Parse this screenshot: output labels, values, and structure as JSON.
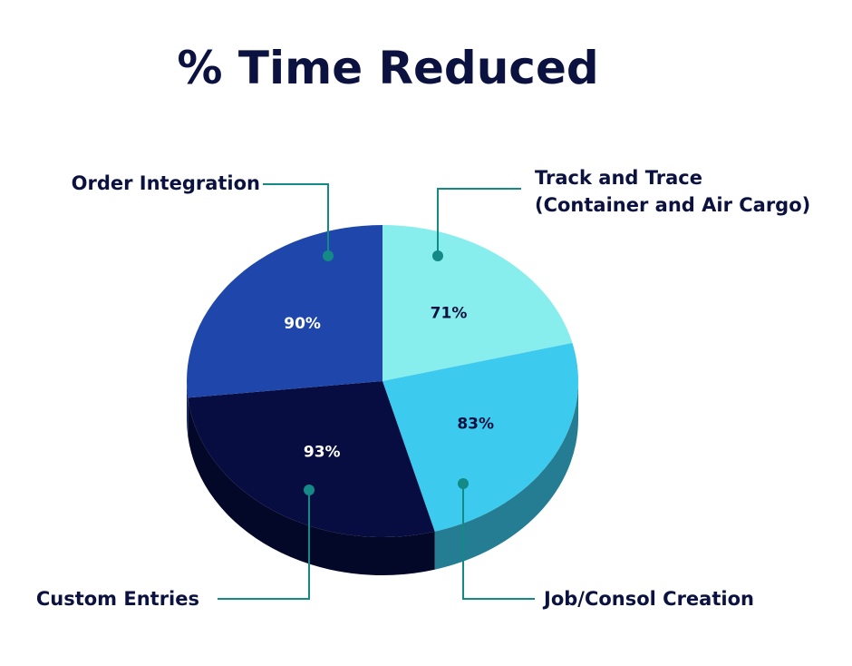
{
  "chart_data": {
    "type": "pie",
    "title": "% Time Reduced",
    "categories": [
      "Track and Trace\n(Container and Air Cargo)",
      "Job/Consol Creation",
      "Custom Entries",
      "Order Integration"
    ],
    "values": [
      71,
      83,
      93,
      90
    ],
    "value_labels": [
      "71%",
      "83%",
      "93%",
      "90%"
    ],
    "colors": [
      "#88eded",
      "#3ccaee",
      "#070d40",
      "#1f47ab"
    ]
  }
}
